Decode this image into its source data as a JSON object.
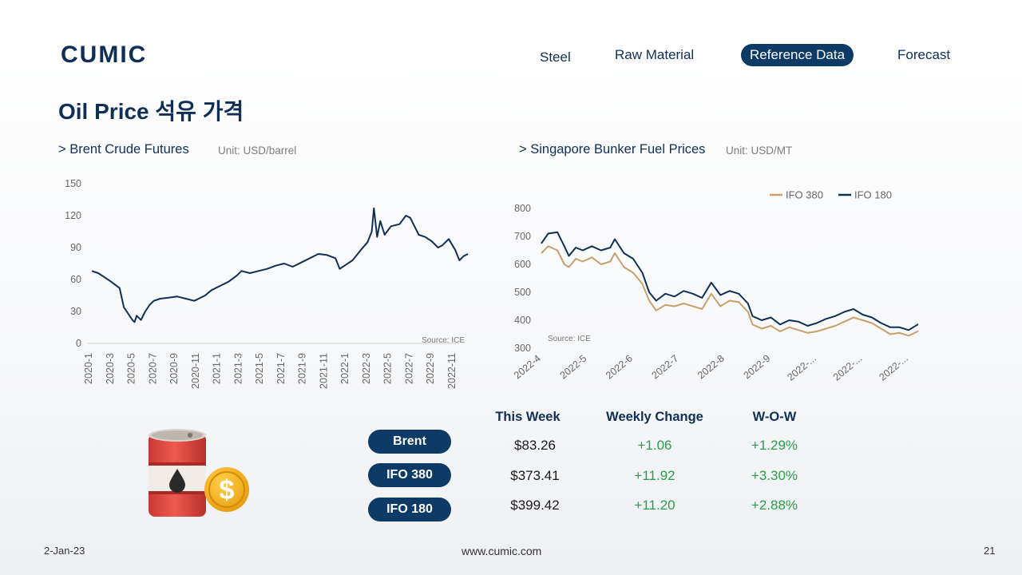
{
  "logo_text": "CUMIC",
  "nav": {
    "steel": "Steel",
    "raw_material": "Raw Material",
    "reference_data": "Reference Data",
    "forecast": "Forecast"
  },
  "page_title": "Oil Price 석유 가격",
  "brent": {
    "title": "> Brent Crude Futures",
    "unit": "Unit: USD/barrel",
    "source": "Source: ICE"
  },
  "bunker": {
    "title": "> Singapore Bunker Fuel Prices",
    "unit": "Unit: USD/MT",
    "source": "Source: ICE"
  },
  "colors": {
    "navy": "#0e3a66",
    "ifo380": "#c8a06a",
    "ifo180": "#0f2f57",
    "positive": "#2a9d4a"
  },
  "chart_data": [
    {
      "type": "line",
      "title": "",
      "xlabel": "",
      "ylabel": "",
      "ylim": [
        0,
        150
      ],
      "yticks": [
        0,
        30,
        60,
        90,
        120,
        150
      ],
      "categories": [
        "2020-1",
        "2020-3",
        "2020-5",
        "2020-7",
        "2020-9",
        "2020-11",
        "2021-1",
        "2021-3",
        "2021-5",
        "2021-7",
        "2021-9",
        "2021-11",
        "2022-1",
        "2022-3",
        "2022-5",
        "2022-7",
        "2022-9",
        "2022-11"
      ],
      "grid": false,
      "series": [
        {
          "color": "#0f2f57",
          "points": [
            [
              0,
              68
            ],
            [
              0.3,
              66
            ],
            [
              0.6,
              62
            ],
            [
              0.9,
              58
            ],
            [
              1.1,
              55
            ],
            [
              1.3,
              52
            ],
            [
              1.5,
              34
            ],
            [
              1.7,
              28
            ],
            [
              1.9,
              22
            ],
            [
              2.0,
              20
            ],
            [
              2.1,
              26
            ],
            [
              2.3,
              22
            ],
            [
              2.5,
              30
            ],
            [
              2.7,
              36
            ],
            [
              2.9,
              40
            ],
            [
              3.2,
              42
            ],
            [
              3.6,
              43
            ],
            [
              4.0,
              44
            ],
            [
              4.4,
              42
            ],
            [
              4.8,
              40
            ],
            [
              5.0,
              42
            ],
            [
              5.3,
              45
            ],
            [
              5.6,
              50
            ],
            [
              6.0,
              54
            ],
            [
              6.4,
              58
            ],
            [
              6.8,
              64
            ],
            [
              7.0,
              68
            ],
            [
              7.4,
              66
            ],
            [
              7.8,
              68
            ],
            [
              8.2,
              70
            ],
            [
              8.6,
              73
            ],
            [
              9.0,
              75
            ],
            [
              9.4,
              72
            ],
            [
              9.8,
              76
            ],
            [
              10.2,
              80
            ],
            [
              10.6,
              84
            ],
            [
              11.0,
              83
            ],
            [
              11.4,
              80
            ],
            [
              11.6,
              70
            ],
            [
              11.9,
              74
            ],
            [
              12.2,
              78
            ],
            [
              12.6,
              88
            ],
            [
              12.9,
              95
            ],
            [
              13.1,
              105
            ],
            [
              13.2,
              127
            ],
            [
              13.35,
              100
            ],
            [
              13.5,
              115
            ],
            [
              13.7,
              102
            ],
            [
              14.0,
              110
            ],
            [
              14.4,
              112
            ],
            [
              14.7,
              120
            ],
            [
              14.9,
              118
            ],
            [
              15.1,
              110
            ],
            [
              15.3,
              102
            ],
            [
              15.6,
              100
            ],
            [
              15.9,
              96
            ],
            [
              16.2,
              90
            ],
            [
              16.4,
              92
            ],
            [
              16.7,
              98
            ],
            [
              17.0,
              88
            ],
            [
              17.2,
              78
            ],
            [
              17.4,
              82
            ],
            [
              17.6,
              84
            ]
          ]
        }
      ]
    },
    {
      "type": "line",
      "title": "",
      "xlabel": "",
      "ylabel": "",
      "ylim": [
        300,
        800
      ],
      "yticks": [
        300,
        400,
        500,
        600,
        700,
        800
      ],
      "categories": [
        "2022-4",
        "2022-5",
        "2022-6",
        "2022-7",
        "2022-8",
        "2022-9",
        "2022-...",
        "2022-...",
        "2022-..."
      ],
      "grid": false,
      "legend": "top-right",
      "series": [
        {
          "name": "IFO 380",
          "color": "#c8a06a",
          "points": [
            [
              0,
              640
            ],
            [
              0.15,
              665
            ],
            [
              0.35,
              650
            ],
            [
              0.5,
              600
            ],
            [
              0.6,
              590
            ],
            [
              0.75,
              620
            ],
            [
              0.9,
              610
            ],
            [
              1.1,
              625
            ],
            [
              1.3,
              600
            ],
            [
              1.5,
              610
            ],
            [
              1.6,
              640
            ],
            [
              1.8,
              590
            ],
            [
              2.0,
              570
            ],
            [
              2.2,
              530
            ],
            [
              2.35,
              470
            ],
            [
              2.5,
              435
            ],
            [
              2.7,
              455
            ],
            [
              2.9,
              450
            ],
            [
              3.1,
              460
            ],
            [
              3.3,
              450
            ],
            [
              3.5,
              440
            ],
            [
              3.7,
              495
            ],
            [
              3.9,
              450
            ],
            [
              4.1,
              470
            ],
            [
              4.3,
              465
            ],
            [
              4.5,
              430
            ],
            [
              4.6,
              385
            ],
            [
              4.8,
              370
            ],
            [
              5.0,
              380
            ],
            [
              5.2,
              360
            ],
            [
              5.4,
              375
            ],
            [
              5.6,
              365
            ],
            [
              5.8,
              355
            ],
            [
              6.0,
              360
            ],
            [
              6.2,
              370
            ],
            [
              6.4,
              380
            ],
            [
              6.6,
              395
            ],
            [
              6.8,
              410
            ],
            [
              7.0,
              400
            ],
            [
              7.2,
              390
            ],
            [
              7.4,
              370
            ],
            [
              7.6,
              350
            ],
            [
              7.8,
              355
            ],
            [
              8.0,
              345
            ],
            [
              8.2,
              360
            ],
            [
              8.4,
              378
            ],
            [
              8.6,
              373
            ]
          ]
        },
        {
          "name": "IFO 180",
          "color": "#0f2f57",
          "points": [
            [
              0,
              675
            ],
            [
              0.15,
              710
            ],
            [
              0.35,
              715
            ],
            [
              0.5,
              665
            ],
            [
              0.6,
              630
            ],
            [
              0.75,
              660
            ],
            [
              0.9,
              650
            ],
            [
              1.1,
              665
            ],
            [
              1.3,
              650
            ],
            [
              1.5,
              660
            ],
            [
              1.6,
              690
            ],
            [
              1.8,
              640
            ],
            [
              2.0,
              620
            ],
            [
              2.2,
              570
            ],
            [
              2.35,
              500
            ],
            [
              2.5,
              470
            ],
            [
              2.7,
              495
            ],
            [
              2.9,
              485
            ],
            [
              3.1,
              505
            ],
            [
              3.3,
              495
            ],
            [
              3.5,
              480
            ],
            [
              3.7,
              535
            ],
            [
              3.9,
              490
            ],
            [
              4.1,
              505
            ],
            [
              4.3,
              495
            ],
            [
              4.5,
              460
            ],
            [
              4.6,
              415
            ],
            [
              4.8,
              400
            ],
            [
              5.0,
              410
            ],
            [
              5.2,
              385
            ],
            [
              5.4,
              400
            ],
            [
              5.6,
              395
            ],
            [
              5.8,
              380
            ],
            [
              6.0,
              390
            ],
            [
              6.2,
              405
            ],
            [
              6.4,
              415
            ],
            [
              6.6,
              430
            ],
            [
              6.8,
              440
            ],
            [
              7.0,
              420
            ],
            [
              7.2,
              410
            ],
            [
              7.4,
              390
            ],
            [
              7.6,
              375
            ],
            [
              7.8,
              375
            ],
            [
              8.0,
              365
            ],
            [
              8.2,
              385
            ],
            [
              8.4,
              402
            ],
            [
              8.6,
              399
            ]
          ]
        }
      ]
    }
  ],
  "table": {
    "headers": [
      "This Week",
      "Weekly Change",
      "W-O-W"
    ],
    "rows": [
      {
        "label": "Brent",
        "price": "$83.26",
        "change": "+1.06",
        "wow": "+1.29%"
      },
      {
        "label": "IFO 380",
        "price": "$373.41",
        "change": "+11.92",
        "wow": "+3.30%"
      },
      {
        "label": "IFO 180",
        "price": "$399.42",
        "change": "+11.20",
        "wow": "+2.88%"
      }
    ]
  },
  "footer": {
    "date": "2-Jan-23",
    "website": "www.cumic.com",
    "page_number": "21"
  }
}
